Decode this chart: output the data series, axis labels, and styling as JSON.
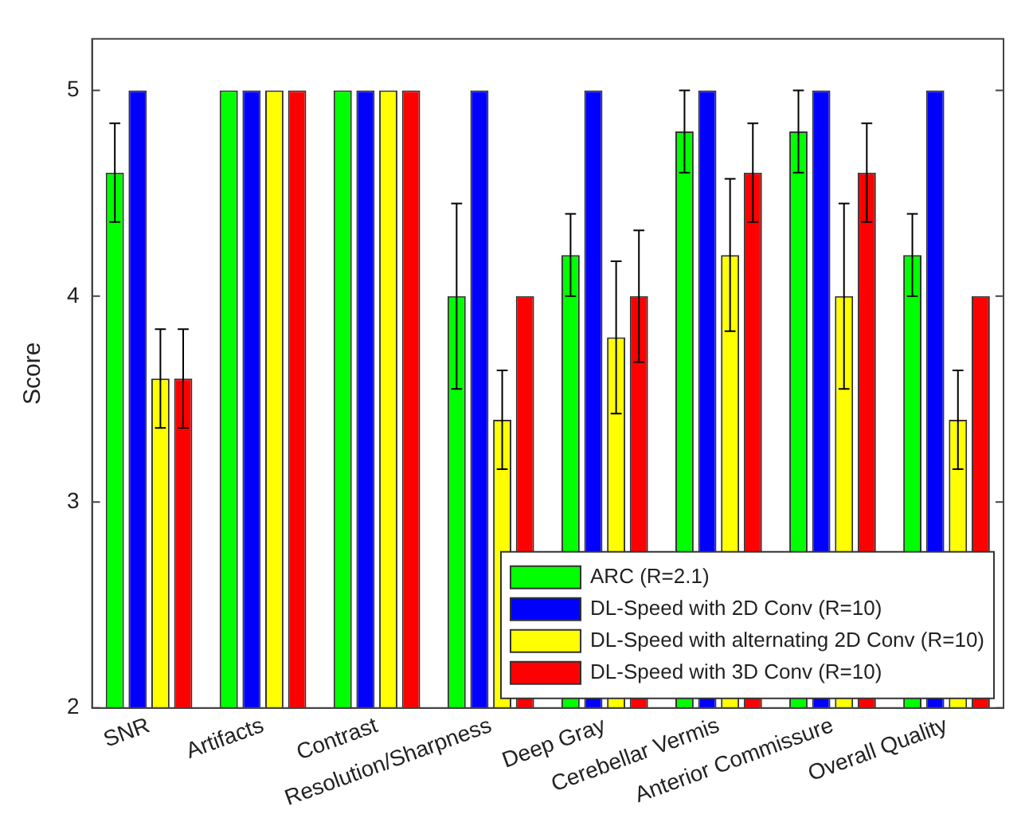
{
  "chart_data": {
    "type": "bar",
    "ylabel": "Score",
    "categories": [
      "SNR",
      "Artifacts",
      "Contrast",
      "Resolution/Sharpness",
      "Deep Gray",
      "Cerebellar Vermis",
      "Anterior Commissure",
      "Overall Quality"
    ],
    "series": [
      {
        "name": "ARC (R=2.1)",
        "color": "#00ff00",
        "values": [
          4.6,
          5,
          5,
          4.0,
          4.2,
          4.8,
          4.8,
          4.2
        ],
        "errors": [
          0.24,
          null,
          null,
          0.45,
          0.2,
          0.2,
          0.2,
          0.2
        ]
      },
      {
        "name": "DL-Speed with 2D Conv (R=10)",
        "color": "#0000ff",
        "values": [
          5,
          5,
          5,
          5,
          5,
          5,
          5,
          5
        ]
      },
      {
        "name": "DL-Speed with alternating 2D Conv (R=10)",
        "color": "#ffff00",
        "values": [
          3.6,
          5,
          5,
          3.4,
          3.8,
          4.2,
          4.0,
          3.4
        ],
        "errors": [
          0.24,
          null,
          null,
          0.24,
          0.37,
          0.37,
          0.45,
          0.24
        ]
      },
      {
        "name": "DL-Speed with 3D Conv (R=10)",
        "color": "#ff0000",
        "values": [
          3.6,
          5,
          5,
          4.0,
          4.0,
          4.6,
          4.6,
          4.0
        ],
        "errors": [
          0.24,
          null,
          null,
          null,
          0.32,
          0.24,
          0.24,
          null
        ]
      }
    ],
    "ylim": [
      2,
      5.25
    ],
    "yticks": [
      2,
      3,
      4,
      5
    ],
    "grid": false,
    "legend": "bottom right"
  }
}
